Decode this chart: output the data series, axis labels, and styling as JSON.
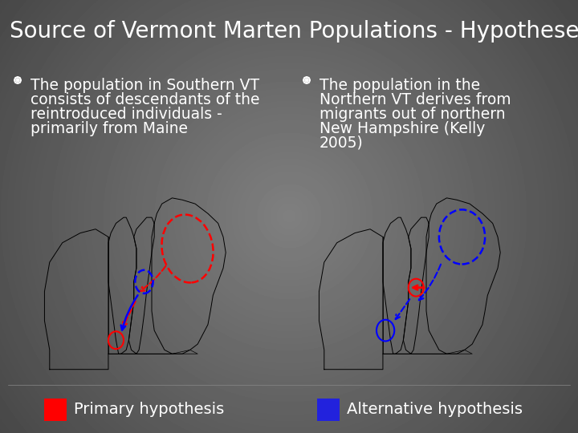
{
  "title": "Source of Vermont Marten Populations - Hypotheses",
  "title_fontsize": 20,
  "title_color": "#ffffff",
  "bg_dark": "#2a2a2a",
  "bg_mid": "#555555",
  "left_bullet_lines": [
    "The population in Southern VT",
    "consists of descendants of the",
    "reintroduced individuals -",
    "primarily from Maine"
  ],
  "right_bullet_lines": [
    "The population in the",
    "Northern VT derives from",
    "migrants out of northern",
    "New Hampshire (Kelly",
    "2005)"
  ],
  "text_color": "#ffffff",
  "text_fontsize": 13.5,
  "primary_color": "#ff0000",
  "alternative_color": "#2222dd",
  "primary_label": "Primary hypothesis",
  "alternative_label": "Alternative hypothesis",
  "legend_fontsize": 14,
  "bullet_fontsize": 18
}
